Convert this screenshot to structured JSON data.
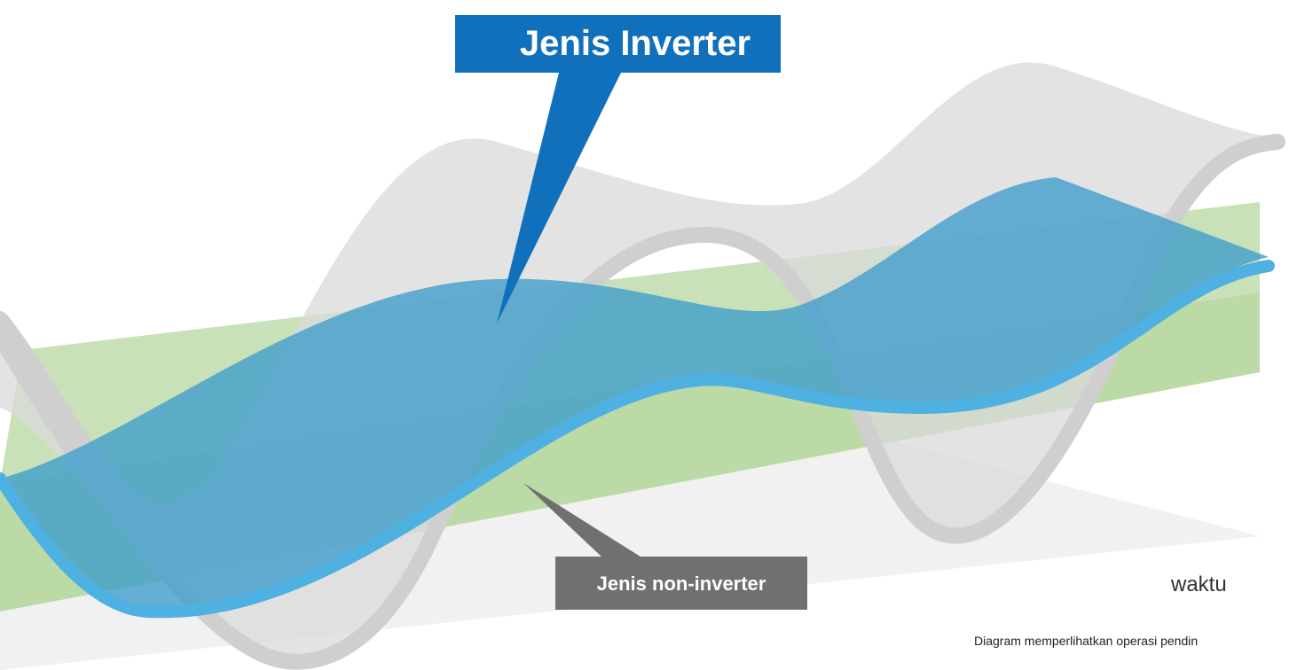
{
  "callouts": {
    "inverter": "Jenis Inverter",
    "non_inverter": "Jenis non-inverter"
  },
  "axis_label": "waktu",
  "caption": "Diagram memperlihatkan operasi pendin"
}
